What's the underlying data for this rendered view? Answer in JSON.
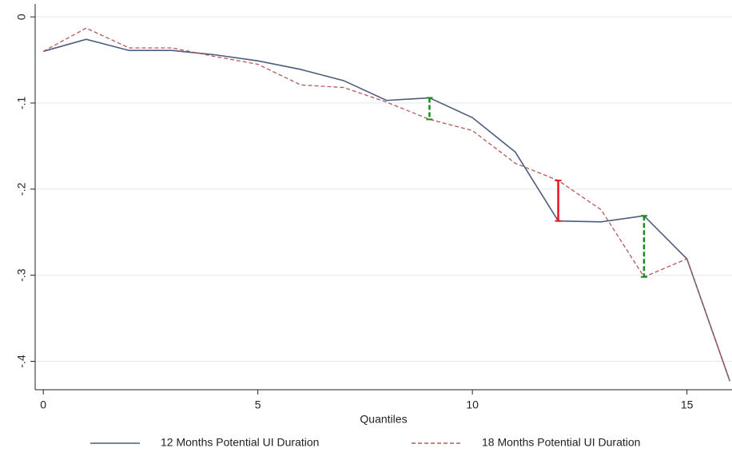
{
  "chart_data": {
    "type": "line",
    "xlabel": "Quantiles",
    "x": [
      0,
      1,
      2,
      3,
      4,
      5,
      6,
      7,
      8,
      9,
      10,
      11,
      12,
      13,
      14,
      15,
      16
    ],
    "series": [
      {
        "name": "12 Months Potential UI Duration",
        "color": "#4b5c7c",
        "dashed": false,
        "values": [
          -0.04,
          -0.026,
          -0.039,
          -0.039,
          -0.044,
          -0.051,
          -0.061,
          -0.074,
          -0.097,
          -0.094,
          -0.117,
          -0.157,
          -0.237,
          -0.238,
          -0.231,
          -0.281,
          -0.423
        ]
      },
      {
        "name": "18 Months Potential UI Duration",
        "color": "#b5585a",
        "dashed": true,
        "values": [
          -0.04,
          -0.013,
          -0.036,
          -0.036,
          -0.046,
          -0.055,
          -0.079,
          -0.082,
          -0.099,
          -0.119,
          -0.132,
          -0.17,
          -0.19,
          -0.224,
          -0.302,
          -0.281,
          -0.423
        ]
      }
    ],
    "gaps": [
      {
        "x": 9,
        "color": "#1a8a1a",
        "dashed": true
      },
      {
        "x": 12,
        "color": "#e8141c",
        "dashed": false
      },
      {
        "x": 14,
        "color": "#1a8a1a",
        "dashed": true
      }
    ],
    "xlim": [
      -0.19,
      16.05
    ],
    "ylim": [
      -0.433,
      0.015
    ],
    "xticks": [
      0,
      5,
      10,
      15
    ],
    "yticks": [
      0,
      {
        "value": -0.1,
        "label": "-.1"
      },
      {
        "value": -0.2,
        "label": "-.2"
      },
      {
        "value": -0.3,
        "label": "-.3"
      },
      {
        "value": -0.4,
        "label": "-.4"
      }
    ],
    "grid": true,
    "legend": "bottom"
  }
}
